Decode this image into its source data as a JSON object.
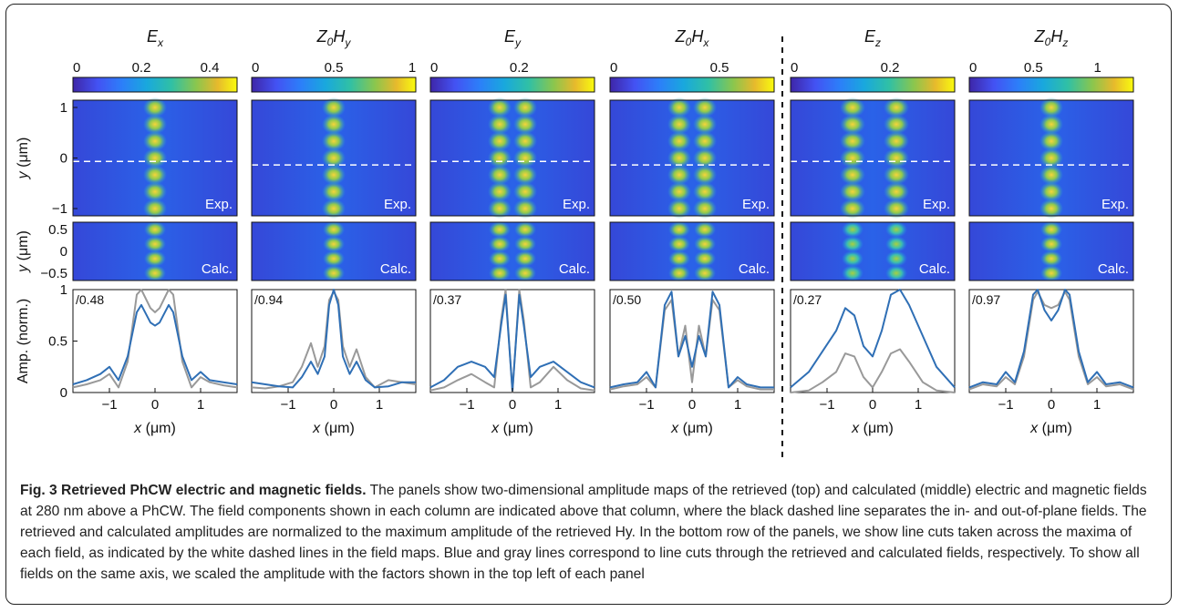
{
  "columns": [
    {
      "title_base": "E",
      "title_sub": "x",
      "cbar_ticks": [
        {
          "v": 0,
          "label": "0"
        },
        {
          "v": 0.2,
          "label": "0.2"
        },
        {
          "v": 0.4,
          "label": "0.4"
        }
      ],
      "cbar_max": 0.48,
      "scale_label": "/0.48"
    },
    {
      "title_base": "Z0H",
      "title_sub": "y",
      "cbar_ticks": [
        {
          "v": 0,
          "label": "0"
        },
        {
          "v": 0.5,
          "label": "0.5"
        },
        {
          "v": 1,
          "label": "1"
        }
      ],
      "cbar_max": 1.0,
      "scale_label": "/0.94"
    },
    {
      "title_base": "E",
      "title_sub": "y",
      "cbar_ticks": [
        {
          "v": 0,
          "label": "0"
        },
        {
          "v": 0.2,
          "label": "0.2"
        }
      ],
      "cbar_max": 0.37,
      "scale_label": "/0.37"
    },
    {
      "title_base": "Z0H",
      "title_sub": "x",
      "cbar_ticks": [
        {
          "v": 0,
          "label": "0"
        },
        {
          "v": 0.5,
          "label": "0.5"
        }
      ],
      "cbar_max": 0.75,
      "scale_label": "/0.50"
    },
    {
      "title_base": "E",
      "title_sub": "z",
      "cbar_ticks": [
        {
          "v": 0,
          "label": "0"
        },
        {
          "v": 0.2,
          "label": "0.2"
        }
      ],
      "cbar_max": 0.33,
      "scale_label": "/0.27"
    },
    {
      "title_base": "Z0H",
      "title_sub": "z",
      "cbar_ticks": [
        {
          "v": 0,
          "label": "0"
        },
        {
          "v": 0.5,
          "label": "0.5"
        },
        {
          "v": 1,
          "label": "1"
        }
      ],
      "cbar_max": 1.28,
      "scale_label": "/0.97"
    }
  ],
  "exp_label": "Exp.",
  "calc_label": "Calc.",
  "axes": {
    "y_label": "y (μm)",
    "x_label": "x (μm)",
    "amp_label": "Amp. (norm.)",
    "exp_y_ticks": [
      {
        "v": 1,
        "label": "1"
      },
      {
        "v": 0,
        "label": "0"
      },
      {
        "v": -1,
        "label": "−1"
      }
    ],
    "calc_y_ticks": [
      {
        "v": 0.5,
        "label": "0.5"
      },
      {
        "v": 0,
        "label": "0"
      },
      {
        "v": -0.5,
        "label": "−0.5"
      }
    ],
    "amp_y_ticks": [
      {
        "v": 1,
        "label": "1"
      },
      {
        "v": 0.5,
        "label": "0.5"
      },
      {
        "v": 0,
        "label": "0"
      }
    ],
    "x_ticks": [
      {
        "v": -1,
        "label": "−1"
      },
      {
        "v": 0,
        "label": "0"
      },
      {
        "v": 1,
        "label": "1"
      }
    ],
    "x_range": [
      -1.8,
      1.8
    ]
  },
  "colors": {
    "retrieved": "#2f6fb5",
    "calculated": "#999999",
    "divider": "#111111"
  },
  "chart_data": [
    {
      "type": "line",
      "panel": "Ex",
      "x": [
        -1.8,
        -1.5,
        -1.2,
        -1.0,
        -0.8,
        -0.6,
        -0.4,
        -0.3,
        -0.1,
        0.0,
        0.1,
        0.3,
        0.4,
        0.6,
        0.8,
        1.0,
        1.2,
        1.5,
        1.8
      ],
      "series": [
        {
          "values": [
            0.08,
            0.12,
            0.18,
            0.25,
            0.12,
            0.35,
            0.78,
            0.85,
            0.68,
            0.65,
            0.68,
            0.85,
            0.78,
            0.35,
            0.12,
            0.2,
            0.12,
            0.1,
            0.08
          ]
        },
        {
          "values": [
            0.05,
            0.08,
            0.12,
            0.18,
            0.05,
            0.3,
            0.95,
            1.0,
            0.82,
            0.78,
            0.82,
            1.0,
            0.95,
            0.3,
            0.05,
            0.15,
            0.1,
            0.07,
            0.05
          ]
        }
      ],
      "ylim": [
        0,
        1
      ]
    },
    {
      "type": "line",
      "panel": "Z0Hy",
      "x": [
        -1.8,
        -1.5,
        -1.2,
        -0.9,
        -0.7,
        -0.5,
        -0.35,
        -0.2,
        -0.1,
        0.0,
        0.1,
        0.2,
        0.35,
        0.5,
        0.7,
        0.9,
        1.2,
        1.5,
        1.8
      ],
      "series": [
        {
          "values": [
            0.1,
            0.08,
            0.06,
            0.05,
            0.15,
            0.3,
            0.18,
            0.35,
            0.85,
            1.0,
            0.85,
            0.35,
            0.18,
            0.3,
            0.12,
            0.05,
            0.06,
            0.1,
            0.1
          ]
        },
        {
          "values": [
            0.05,
            0.04,
            0.06,
            0.1,
            0.25,
            0.48,
            0.25,
            0.45,
            0.9,
            0.98,
            0.9,
            0.45,
            0.25,
            0.42,
            0.15,
            0.05,
            0.12,
            0.1,
            0.08
          ]
        }
      ],
      "ylim": [
        0,
        1
      ]
    },
    {
      "type": "line",
      "panel": "Ey",
      "x": [
        -1.8,
        -1.5,
        -1.2,
        -0.9,
        -0.6,
        -0.4,
        -0.25,
        -0.15,
        0.0,
        0.15,
        0.25,
        0.4,
        0.6,
        0.9,
        1.2,
        1.5,
        1.8
      ],
      "series": [
        {
          "values": [
            0.05,
            0.12,
            0.25,
            0.3,
            0.25,
            0.15,
            0.65,
            0.95,
            0.02,
            0.95,
            0.65,
            0.15,
            0.25,
            0.3,
            0.2,
            0.1,
            0.05
          ]
        },
        {
          "values": [
            0.02,
            0.05,
            0.12,
            0.18,
            0.1,
            0.05,
            0.7,
            1.0,
            0.0,
            1.0,
            0.7,
            0.05,
            0.1,
            0.25,
            0.12,
            0.04,
            0.02
          ]
        }
      ],
      "ylim": [
        0,
        1
      ]
    },
    {
      "type": "line",
      "panel": "Z0Hx",
      "x": [
        -1.8,
        -1.5,
        -1.2,
        -1.0,
        -0.8,
        -0.6,
        -0.45,
        -0.3,
        -0.15,
        0.0,
        0.15,
        0.3,
        0.45,
        0.6,
        0.8,
        1.0,
        1.2,
        1.5,
        1.8
      ],
      "series": [
        {
          "values": [
            0.05,
            0.08,
            0.1,
            0.2,
            0.05,
            0.85,
            0.98,
            0.35,
            0.55,
            0.25,
            0.55,
            0.35,
            0.98,
            0.85,
            0.05,
            0.15,
            0.08,
            0.05,
            0.05
          ]
        },
        {
          "values": [
            0.03,
            0.06,
            0.08,
            0.15,
            0.05,
            0.8,
            0.9,
            0.35,
            0.65,
            0.1,
            0.65,
            0.35,
            0.9,
            0.8,
            0.05,
            0.12,
            0.06,
            0.03,
            0.03
          ]
        }
      ],
      "ylim": [
        0,
        1
      ]
    },
    {
      "type": "line",
      "panel": "Ez",
      "x": [
        -1.8,
        -1.4,
        -1.1,
        -0.8,
        -0.6,
        -0.4,
        -0.2,
        0.0,
        0.2,
        0.4,
        0.6,
        0.8,
        1.1,
        1.4,
        1.8
      ],
      "series": [
        {
          "values": [
            0.05,
            0.2,
            0.4,
            0.6,
            0.82,
            0.75,
            0.45,
            0.35,
            0.6,
            0.95,
            1.0,
            0.85,
            0.55,
            0.25,
            0.05
          ]
        },
        {
          "values": [
            0.0,
            0.02,
            0.1,
            0.2,
            0.38,
            0.35,
            0.15,
            0.05,
            0.2,
            0.38,
            0.42,
            0.3,
            0.1,
            0.02,
            0.0
          ]
        }
      ],
      "ylim": [
        0,
        1
      ]
    },
    {
      "type": "line",
      "panel": "Z0Hz",
      "x": [
        -1.8,
        -1.5,
        -1.2,
        -1.0,
        -0.8,
        -0.6,
        -0.4,
        -0.3,
        -0.15,
        0.0,
        0.15,
        0.3,
        0.4,
        0.6,
        0.8,
        1.0,
        1.2,
        1.5,
        1.8
      ],
      "series": [
        {
          "values": [
            0.05,
            0.1,
            0.08,
            0.2,
            0.1,
            0.4,
            0.95,
            1.0,
            0.8,
            0.7,
            0.8,
            1.0,
            0.95,
            0.4,
            0.1,
            0.2,
            0.08,
            0.1,
            0.05
          ]
        },
        {
          "values": [
            0.03,
            0.08,
            0.06,
            0.15,
            0.08,
            0.35,
            0.9,
            0.98,
            0.85,
            0.82,
            0.85,
            0.98,
            0.9,
            0.35,
            0.08,
            0.15,
            0.06,
            0.08,
            0.03
          ]
        }
      ],
      "ylim": [
        0,
        1
      ]
    }
  ],
  "caption": {
    "title": "Fig. 3 Retrieved PhCW electric and magnetic fields.",
    "body": " The panels show two-dimensional amplitude maps of the retrieved (top) and calculated (middle) electric and magnetic fields at 280 nm above a PhCW. The field components shown in each column are indicated above that column, where the black dashed line separates the in- and out-of-plane fields. The retrieved and calculated amplitudes are normalized to the maximum amplitude of the retrieved Hy. In the bottom row of the panels, we show line cuts taken across the maxima of each field, as indicated by the white dashed lines in the field maps. Blue and gray lines correspond to line cuts through the retrieved and calculated fields, respectively. To show all fields on the same axis, we scaled the amplitude with the factors shown in the top left of each panel"
  }
}
